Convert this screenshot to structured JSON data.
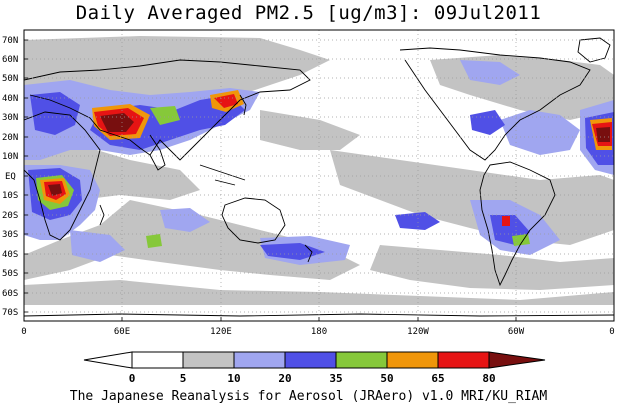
{
  "title": "Daily Averaged PM2.5 [ug/m3]: 09Jul2011",
  "footer": "The Japanese Reanalysis for Aerosol (JRAero) v1.0 MRI/KU_RIAM",
  "map": {
    "lat_labels": [
      "70N",
      "60N",
      "50N",
      "40N",
      "30N",
      "20N",
      "10N",
      "EQ",
      "10S",
      "20S",
      "30S",
      "40S",
      "50S",
      "60S",
      "70S"
    ],
    "lon_labels": [
      "0",
      "60E",
      "120E",
      "180",
      "120W",
      "60W",
      "0"
    ],
    "colors": {
      "land_outline": "#000000",
      "grid": "#9a9a9a"
    }
  },
  "colorbar": {
    "levels": [
      "0",
      "5",
      "10",
      "20",
      "35",
      "50",
      "65",
      "80"
    ],
    "colors": [
      "#ffffff",
      "#c3c3c3",
      "#a0a6f0",
      "#5050e6",
      "#86c83a",
      "#f0960a",
      "#e61414",
      "#780f0f",
      "#780f0f"
    ]
  }
}
